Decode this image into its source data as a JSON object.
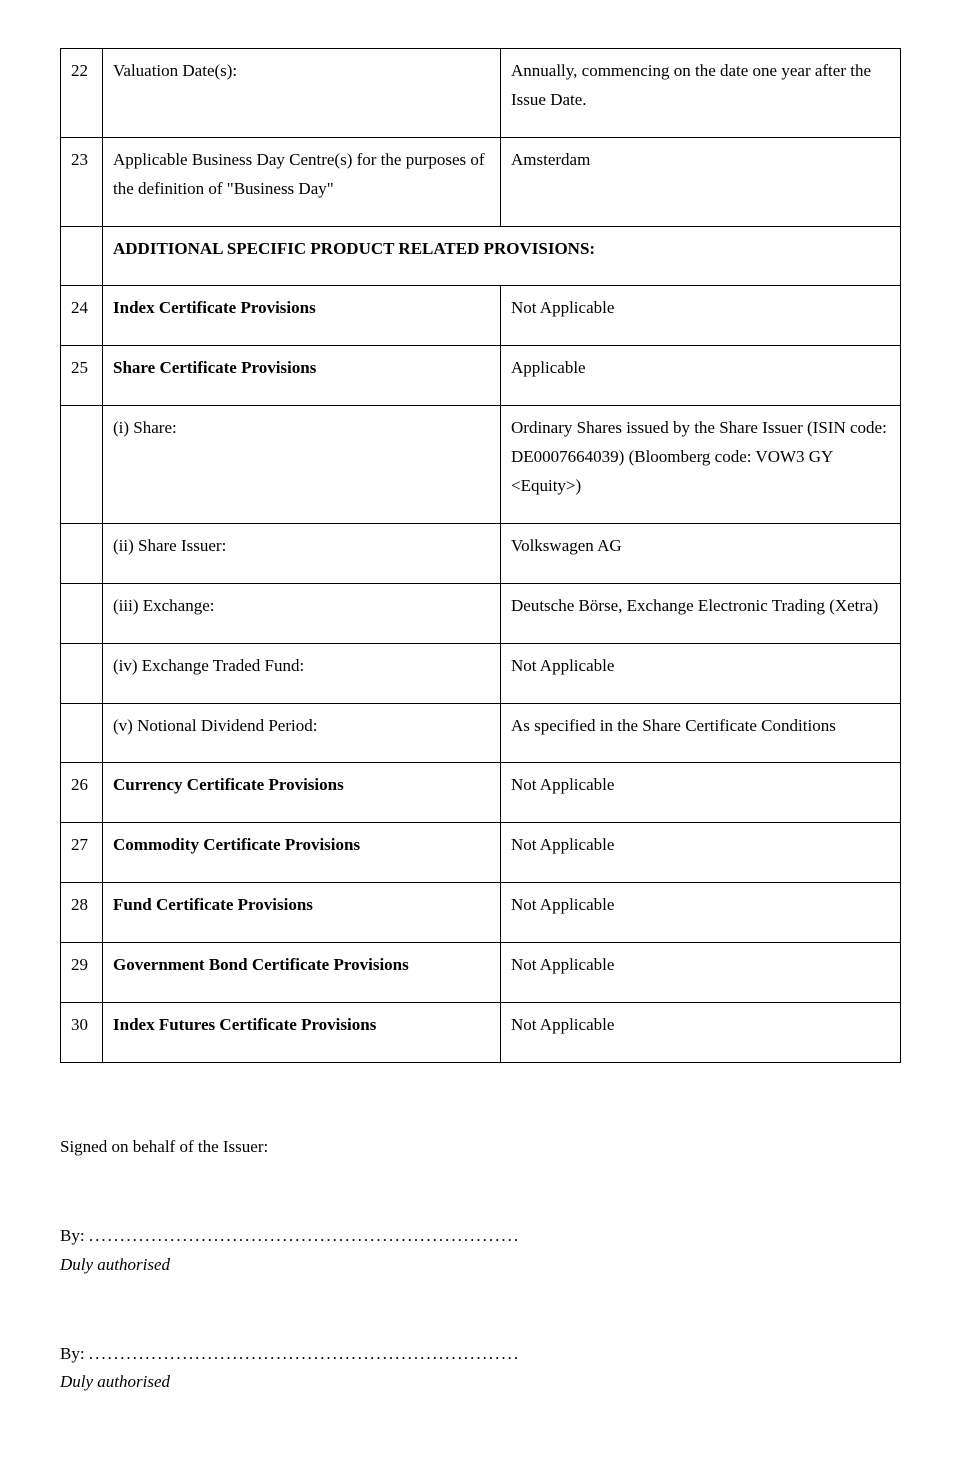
{
  "rows": {
    "r22": {
      "n": "22",
      "label": "Valuation Date(s):",
      "value": "Annually, commencing on the date one year after the Issue Date."
    },
    "r23": {
      "n": "23",
      "label": "Applicable Business Day Centre(s) for the purposes of the definition of \"Business Day\"",
      "value": "Amsterdam"
    },
    "heading": "ADDITIONAL SPECIFIC PRODUCT RELATED PROVISIONS:",
    "r24": {
      "n": "24",
      "label": "Index Certificate Provisions",
      "value": "Not Applicable"
    },
    "r25": {
      "n": "25",
      "label": "Share Certificate Provisions",
      "value": "Applicable"
    },
    "r25i": {
      "label": "(i)   Share:",
      "value": "Ordinary Shares issued by the Share Issuer (ISIN code: DE0007664039) (Bloomberg code: VOW3 GY <Equity>)"
    },
    "r25ii": {
      "label": "(ii)  Share Issuer:",
      "value": "Volkswagen AG"
    },
    "r25iii": {
      "label": "(iii) Exchange:",
      "value": "Deutsche Börse, Exchange Electronic Trading (Xetra)"
    },
    "r25iv": {
      "label": "(iv) Exchange Traded Fund:",
      "value": "Not Applicable"
    },
    "r25v": {
      "label": "(v)  Notional Dividend Period:",
      "value": "As specified in the Share Certificate Conditions"
    },
    "r26": {
      "n": "26",
      "label": "Currency Certificate Provisions",
      "value": "Not Applicable"
    },
    "r27": {
      "n": "27",
      "label": "Commodity Certificate Provisions",
      "value": "Not Applicable"
    },
    "r28": {
      "n": "28",
      "label": "Fund Certificate Provisions",
      "value": "Not Applicable"
    },
    "r29": {
      "n": "29",
      "label": "Government Bond Certificate Provisions",
      "value": "Not Applicable"
    },
    "r30": {
      "n": "30",
      "label": "Index Futures Certificate Provisions",
      "value": "Not Applicable"
    }
  },
  "signature": {
    "signed": "Signed on behalf of the Issuer:",
    "by": "By:",
    "dots": ".....................................................................",
    "duly": "Duly authorised"
  }
}
